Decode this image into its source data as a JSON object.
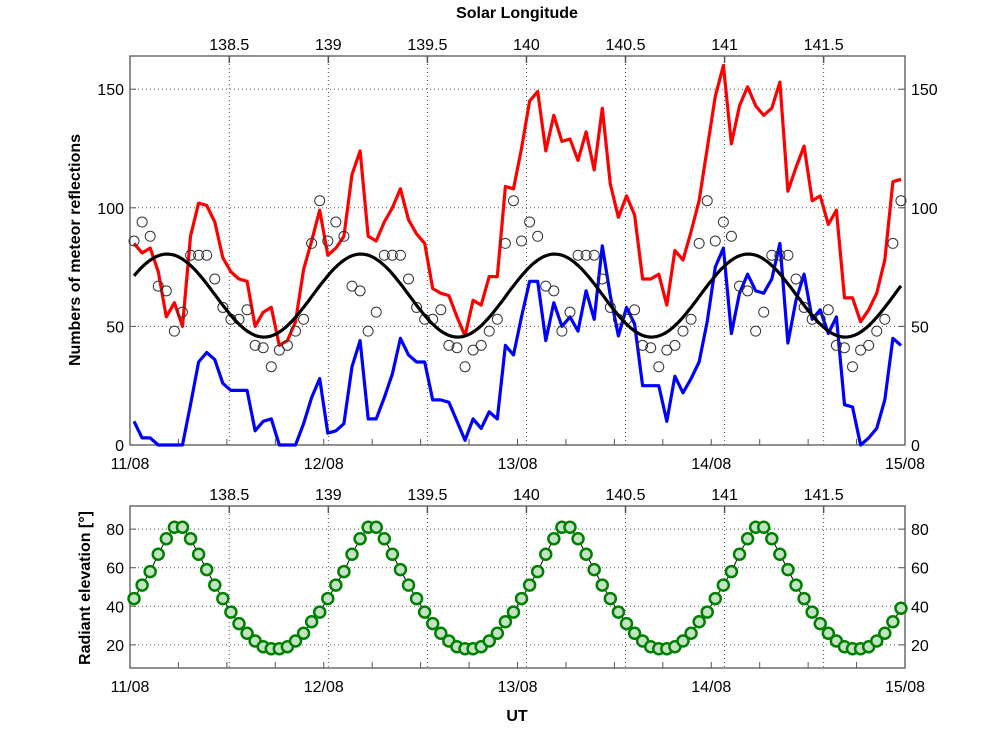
{
  "chart_data": [
    {
      "type": "line",
      "title": "Solar Longitude",
      "ylabel": "Numbers of meteor reflections",
      "ylim": [
        0,
        164
      ],
      "xlim": [
        "11/08 00:00",
        "15/08 00:00"
      ],
      "x_tick_labels": [
        "11/08",
        "12/08",
        "13/08",
        "14/08",
        "15/08"
      ],
      "top_axis_tick_labels": [
        "138.5",
        "139",
        "139.5",
        "140",
        "140.5",
        "141",
        "141.5"
      ],
      "y_tick_labels": [
        "0",
        "50",
        "100",
        "150"
      ],
      "grid": true,
      "x_times": {
        "start": "11/08 00:30",
        "step_hours": 1
      },
      "series": [
        {
          "style": "red-line",
          "color": "#ff0000",
          "values": [
            85,
            81,
            83,
            73,
            54,
            60,
            50,
            88,
            102,
            101,
            94,
            79,
            73,
            70,
            69,
            50,
            56,
            58,
            42,
            44,
            52,
            74,
            86,
            99,
            80,
            83,
            88,
            114,
            124,
            88,
            86,
            94,
            100,
            108,
            95,
            89,
            85,
            66,
            64,
            63,
            54,
            46,
            61,
            59,
            71,
            71,
            109,
            108,
            125,
            145,
            149,
            124,
            139,
            128,
            129,
            120,
            132,
            116,
            142,
            110,
            96,
            105,
            97,
            70,
            70,
            72,
            59,
            82,
            78,
            90,
            103,
            125,
            147,
            160,
            127,
            143,
            151,
            143,
            139,
            142,
            153,
            107,
            117,
            126,
            103,
            105,
            93,
            99,
            62,
            62,
            52,
            57,
            64,
            78,
            111,
            112
          ]
        },
        {
          "style": "blue-line",
          "color": "#0000ff",
          "values": [
            10,
            3,
            3,
            0,
            0,
            0,
            0,
            17,
            35,
            39,
            36,
            26,
            23,
            23,
            23,
            6,
            10,
            11,
            0,
            0,
            0,
            9,
            20,
            28,
            5,
            6,
            9,
            33,
            44,
            11,
            11,
            20,
            30,
            45,
            38,
            35,
            35,
            19,
            19,
            18,
            10,
            2,
            11,
            7,
            14,
            11,
            42,
            38,
            54,
            69,
            69,
            44,
            60,
            50,
            54,
            48,
            65,
            53,
            84,
            63,
            46,
            58,
            51,
            25,
            25,
            25,
            10,
            29,
            22,
            28,
            35,
            52,
            75,
            83,
            47,
            64,
            72,
            65,
            64,
            70,
            85,
            43,
            61,
            72,
            53,
            57,
            47,
            54,
            17,
            16,
            0,
            3,
            7,
            19,
            45,
            42
          ]
        },
        {
          "style": "open-circles",
          "color": "#000000",
          "values": [
            86,
            94,
            88,
            67,
            65,
            48,
            56,
            80,
            80,
            80,
            70,
            58,
            53,
            53,
            57,
            42,
            41,
            33,
            40,
            42,
            48,
            53,
            85,
            103,
            86,
            94,
            88,
            67,
            65,
            48,
            56,
            80,
            80,
            80,
            70,
            58,
            53,
            53,
            57,
            42,
            41,
            33,
            40,
            42,
            48,
            53,
            85,
            103,
            86,
            94,
            88,
            67,
            65,
            48,
            56,
            80,
            80,
            80,
            70,
            58,
            53,
            53,
            57,
            42,
            41,
            33,
            40,
            42,
            48,
            53,
            85,
            103,
            86,
            94,
            88,
            67,
            65,
            48,
            56,
            80,
            80,
            80,
            70,
            58,
            53,
            53,
            57,
            42,
            41,
            33,
            40,
            42,
            48,
            53,
            85,
            103
          ]
        },
        {
          "style": "black-sinusoid",
          "color": "#000000",
          "sinusoid": {
            "mean": 63,
            "amplitude": 17.5,
            "period_hours": 24,
            "peak_hour_UT": 4.6
          }
        }
      ]
    },
    {
      "type": "scatter",
      "xlabel": "UT",
      "ylabel": "Radiant elevation [°]",
      "ylim": [
        8,
        92
      ],
      "x_tick_labels": [
        "11/08",
        "12/08",
        "13/08",
        "14/08",
        "15/08"
      ],
      "top_axis_tick_labels": [
        "138.5",
        "139",
        "139.5",
        "140",
        "140.5",
        "141",
        "141.5"
      ],
      "y_tick_labels": [
        "20",
        "40",
        "60",
        "80"
      ],
      "grid": true,
      "x_times": {
        "start": "11/08 00:30",
        "step_hours": 1
      },
      "series": [
        {
          "style": "filled-circles",
          "color": "#008000",
          "fill": "#c4e2c4",
          "values": [
            44,
            51,
            58,
            67,
            75,
            81,
            81,
            75,
            67,
            59,
            51,
            44,
            37,
            31,
            26,
            22,
            19,
            18,
            18,
            19,
            22,
            26,
            32,
            37,
            44,
            51,
            58,
            67,
            75,
            81,
            81,
            75,
            67,
            59,
            51,
            44,
            37,
            31,
            26,
            22,
            19,
            18,
            18,
            19,
            22,
            26,
            32,
            37,
            44,
            51,
            58,
            67,
            75,
            81,
            81,
            75,
            67,
            59,
            51,
            44,
            37,
            31,
            26,
            22,
            19,
            18,
            18,
            19,
            22,
            26,
            32,
            37,
            44,
            51,
            58,
            67,
            75,
            81,
            81,
            75,
            67,
            59,
            51,
            44,
            37,
            31,
            26,
            22,
            19,
            18,
            18,
            19,
            22,
            26,
            32,
            39
          ]
        }
      ]
    }
  ]
}
